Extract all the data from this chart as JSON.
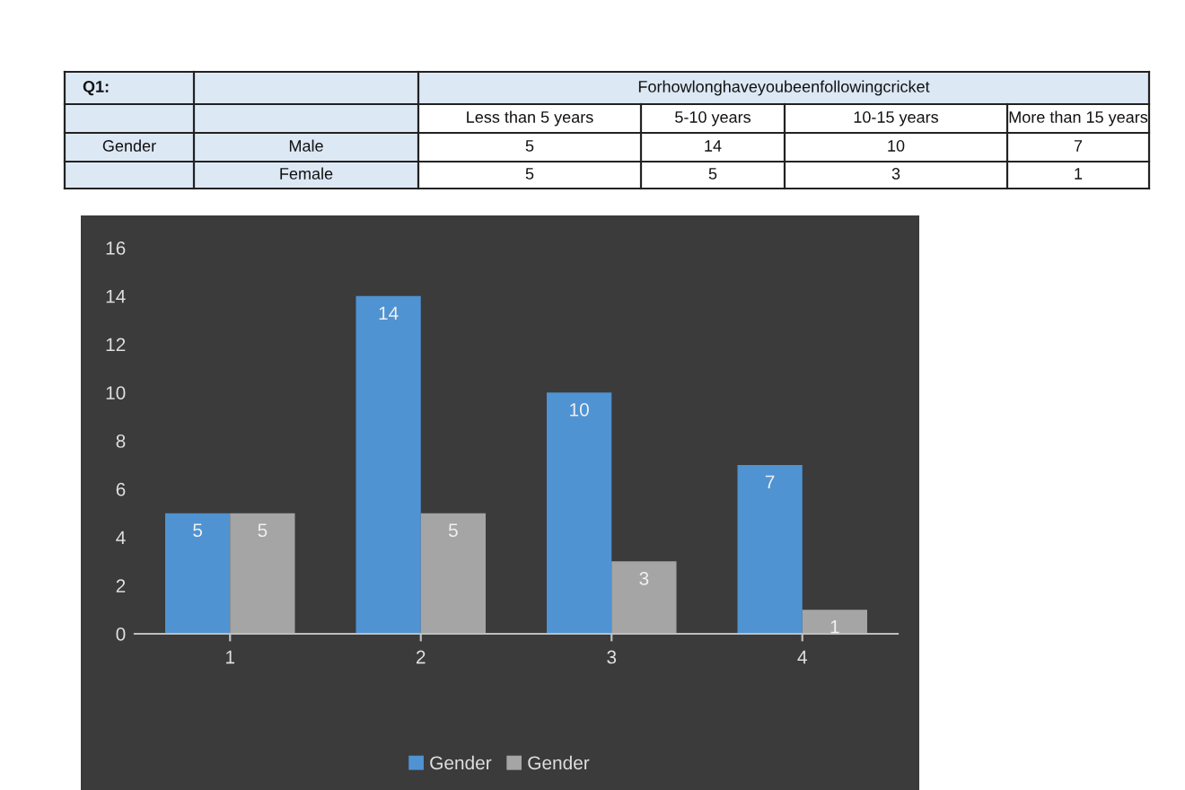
{
  "chart_data": {
    "type": "bar",
    "categories": [
      "1",
      "2",
      "3",
      "4"
    ],
    "series": [
      {
        "name": "Gender",
        "color": "#4f93d3",
        "values": [
          5,
          14,
          10,
          7
        ]
      },
      {
        "name": "Gender",
        "color": "#a5a5a5",
        "values": [
          5,
          5,
          3,
          1
        ]
      }
    ],
    "ylim": [
      0,
      16
    ],
    "yticks": [
      0,
      2,
      4,
      6,
      8,
      10,
      12,
      14,
      16
    ],
    "data_labels": true,
    "grid": false,
    "legend": "bottom",
    "annotations": [
      "Q1:",
      "Forhowlonghaveyoubeenfollowingcricket",
      "Less than 5 years",
      "5-10 years",
      "10-15 years",
      "More than 15 years",
      "Gender",
      "Male",
      "5",
      "14",
      "10",
      "7",
      "Female",
      "5",
      "5",
      "3",
      "1"
    ]
  }
}
